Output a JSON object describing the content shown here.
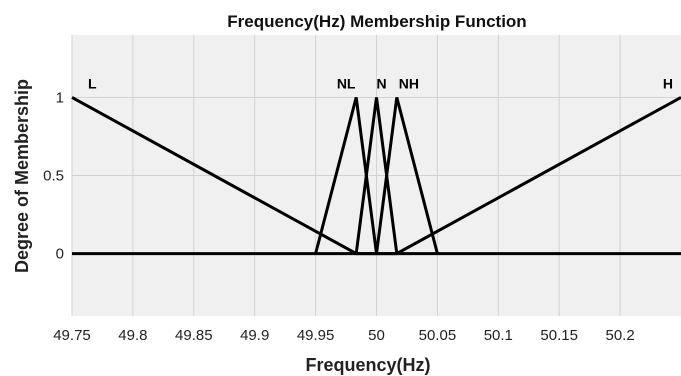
{
  "chart_data": {
    "type": "line",
    "title": "Frequency(Hz) Membership Function",
    "xlabel": "Frequency(Hz)",
    "ylabel": "Degree of Membership",
    "xlim": [
      49.75,
      50.25
    ],
    "ylim": [
      -0.4,
      1.4
    ],
    "x_ticks": [
      "49.75",
      "49.8",
      "49.85",
      "49.9",
      "49.95",
      "50",
      "50.05",
      "50.1",
      "50.15",
      "50.2"
    ],
    "y_ticks": [
      "0",
      "0.5",
      "1"
    ],
    "grid": true,
    "plot_background": "#f0f0f0",
    "line_color": "#000000",
    "series": [
      {
        "name": "L",
        "x": [
          49.75,
          49.9833,
          50.25
        ],
        "y": [
          1,
          0,
          0
        ]
      },
      {
        "name": "NL",
        "x": [
          49.95,
          49.9833,
          50.0
        ],
        "y": [
          0,
          1,
          0
        ]
      },
      {
        "name": "N",
        "x": [
          49.9833,
          50.0,
          50.0167
        ],
        "y": [
          0,
          1,
          0
        ]
      },
      {
        "name": "NH",
        "x": [
          50.0,
          50.0167,
          50.05
        ],
        "y": [
          0,
          1,
          0
        ]
      },
      {
        "name": "H",
        "x": [
          49.75,
          50.0167,
          50.25
        ],
        "y": [
          0,
          0,
          1
        ]
      }
    ]
  }
}
